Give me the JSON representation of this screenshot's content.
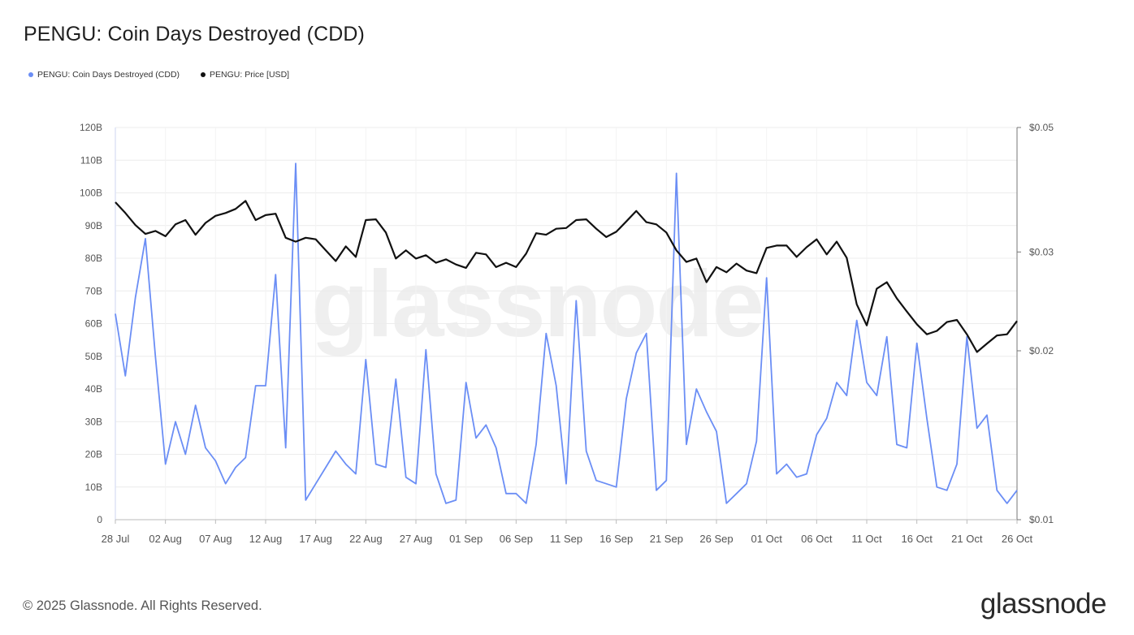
{
  "title": "PENGU: Coin Days Destroyed (CDD)",
  "footer": "© 2025 Glassnode. All Rights Reserved.",
  "brand": "glassnode",
  "watermark": "glassnode",
  "colors": {
    "cdd": "#6b8ef5",
    "price": "#111111",
    "grid": "#ececec",
    "axis": "#bbbbbb"
  },
  "chart_data": {
    "type": "line",
    "title": "PENGU: Coin Days Destroyed (CDD)",
    "legend_position": "top-left",
    "grid": true,
    "x_range": [
      "2025-07-28",
      "2025-10-26"
    ],
    "x_ticks": [
      "28 Jul",
      "02 Aug",
      "07 Aug",
      "12 Aug",
      "17 Aug",
      "22 Aug",
      "27 Aug",
      "01 Sep",
      "06 Sep",
      "11 Sep",
      "16 Sep",
      "21 Sep",
      "26 Sep",
      "01 Oct",
      "06 Oct",
      "11 Oct",
      "16 Oct",
      "21 Oct",
      "26 Oct"
    ],
    "y_left": {
      "ticks": [
        "0",
        "10B",
        "20B",
        "30B",
        "40B",
        "50B",
        "60B",
        "70B",
        "80B",
        "90B",
        "100B",
        "110B",
        "120B"
      ],
      "ylim": [
        0,
        120
      ]
    },
    "y_right": {
      "ticks": [
        "$0.01",
        "$0.02",
        "$0.03",
        "$0.05"
      ],
      "scale": "log",
      "ylim": [
        0.01,
        0.05
      ]
    },
    "series": [
      {
        "name": "PENGU: Coin Days Destroyed (CDD)",
        "axis": "left",
        "unit": "B",
        "values": [
          63,
          44,
          68,
          86,
          50,
          17,
          30,
          20,
          35,
          22,
          18,
          11,
          16,
          19,
          41,
          41,
          75,
          22,
          109,
          6,
          11,
          16,
          21,
          17,
          14,
          49,
          17,
          16,
          43,
          13,
          11,
          52,
          14,
          5,
          6,
          42,
          25,
          29,
          22,
          8,
          8,
          5,
          23,
          57,
          41,
          11,
          67,
          21,
          12,
          11,
          10,
          37,
          51,
          57,
          9,
          12,
          106,
          23,
          40,
          33,
          27,
          5,
          8,
          11,
          24,
          74,
          14,
          17,
          13,
          14,
          26,
          31,
          42,
          38,
          61,
          42,
          38,
          56,
          23,
          22,
          54,
          31,
          10,
          9,
          17,
          56,
          28,
          32,
          9,
          5,
          9
        ]
      },
      {
        "name": "PENGU: Price [USD]",
        "axis": "right",
        "unit": "USD",
        "values": [
          0.0368,
          0.0352,
          0.0335,
          0.0323,
          0.0327,
          0.032,
          0.0336,
          0.0342,
          0.0322,
          0.0338,
          0.0348,
          0.0352,
          0.0358,
          0.037,
          0.0342,
          0.0349,
          0.0351,
          0.0318,
          0.0313,
          0.0318,
          0.0316,
          0.0302,
          0.0289,
          0.0307,
          0.0294,
          0.0342,
          0.0343,
          0.0325,
          0.0292,
          0.0302,
          0.0292,
          0.0296,
          0.0287,
          0.0291,
          0.0285,
          0.0281,
          0.0299,
          0.0297,
          0.0282,
          0.0287,
          0.0282,
          0.0298,
          0.0324,
          0.0322,
          0.033,
          0.0331,
          0.0342,
          0.0343,
          0.033,
          0.0319,
          0.0326,
          0.034,
          0.0355,
          0.0339,
          0.0336,
          0.0325,
          0.0302,
          0.0288,
          0.0292,
          0.0265,
          0.0282,
          0.0276,
          0.0286,
          0.0278,
          0.0275,
          0.0305,
          0.0308,
          0.0308,
          0.0294,
          0.0306,
          0.0316,
          0.0297,
          0.0313,
          0.0293,
          0.0242,
          0.0222,
          0.0258,
          0.0265,
          0.0248,
          0.0235,
          0.0223,
          0.0214,
          0.0217,
          0.0225,
          0.0227,
          0.0214,
          0.0199,
          0.0206,
          0.0213,
          0.0214,
          0.0226
        ]
      }
    ]
  }
}
